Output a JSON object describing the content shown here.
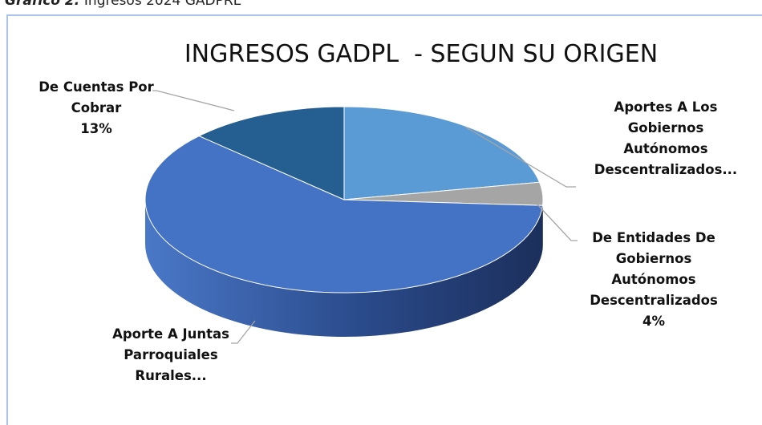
{
  "caption": {
    "label": "Gráfico 2:",
    "text": "Ingresos 2024 GADPRL"
  },
  "chart_data": {
    "type": "pie3d",
    "title": "INGRESOS GADPL  - SEGUN SU ORIGEN",
    "categories": [
      "Aportes A Los Gobiernos Autónomos Descentralizados...",
      "De Entidades De Gobiernos Autónomos Descentralizados",
      "Aporte A Juntas Parroquiales Rurales...",
      "De Cuentas Por Cobrar"
    ],
    "values": [
      22,
      4,
      61,
      13
    ],
    "value_labels": [
      null,
      "4%",
      null,
      "13%"
    ],
    "colors": [
      "#5b9bd5",
      "#a5a5a5",
      "#4472c4",
      "#255e91"
    ]
  }
}
